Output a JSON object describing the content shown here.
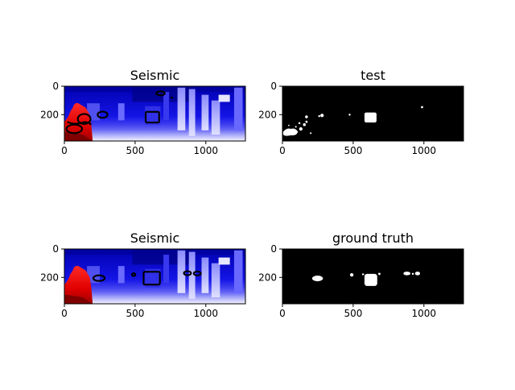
{
  "figure": {
    "background": "#ffffff",
    "colormap": "seismic",
    "colormap_stops": [
      "#00004c",
      "#0000ff",
      "#ffffff",
      "#ff0000",
      "#7f0000"
    ],
    "mask_colors": {
      "background": "#000000",
      "foreground": "#ffffff"
    },
    "contour_color": "#000000"
  },
  "chart_data": [
    {
      "type": "heatmap",
      "title": "Seismic",
      "image_size": [
        1280,
        385
      ],
      "xlim": [
        0,
        1280
      ],
      "ylim": [
        385,
        0
      ],
      "xticks": [
        0,
        500,
        1000
      ],
      "yticks": [
        0,
        200
      ],
      "colormap": "seismic",
      "contours": "black outlines of predicted regions"
    },
    {
      "type": "heatmap",
      "title": "test",
      "image_size": [
        1280,
        385
      ],
      "xlim": [
        0,
        1280
      ],
      "ylim": [
        385,
        0
      ],
      "xticks": [
        0,
        500,
        1000
      ],
      "yticks": [
        0,
        200
      ],
      "colormap": "binary mask"
    },
    {
      "type": "heatmap",
      "title": "Seismic",
      "image_size": [
        1280,
        385
      ],
      "xlim": [
        0,
        1280
      ],
      "ylim": [
        385,
        0
      ],
      "xticks": [
        0,
        500,
        1000
      ],
      "yticks": [
        0,
        200
      ],
      "colormap": "seismic",
      "contours": "black outlines of ground-truth regions"
    },
    {
      "type": "heatmap",
      "title": "ground truth",
      "image_size": [
        1280,
        385
      ],
      "xlim": [
        0,
        1280
      ],
      "ylim": [
        385,
        0
      ],
      "xticks": [
        0,
        500,
        1000
      ],
      "yticks": [
        0,
        200
      ],
      "colormap": "binary mask"
    }
  ]
}
